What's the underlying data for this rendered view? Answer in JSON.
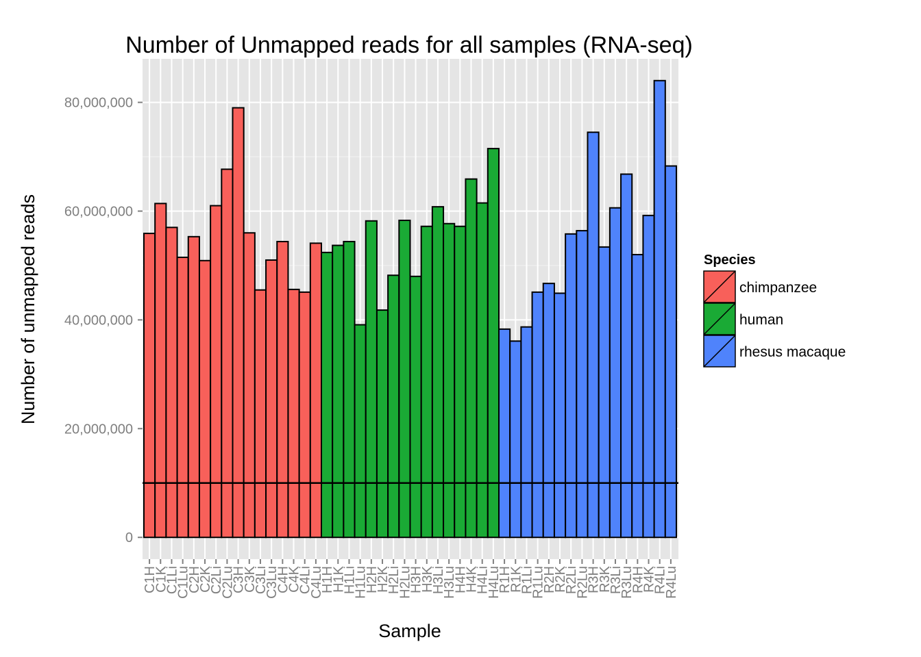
{
  "chart_data": {
    "type": "bar",
    "title": "Number of Unmapped reads for all samples (RNA-seq)",
    "xlabel": "Sample",
    "ylabel": "Number of unmapped reads",
    "ylim": [
      -4000000,
      88000000
    ],
    "yticks": [
      0,
      20000000,
      40000000,
      60000000,
      80000000
    ],
    "ytick_labels": [
      "0",
      "20,000,000",
      "40,000,000",
      "60,000,000",
      "80,000,000"
    ],
    "grid": true,
    "background": "#e5e5e5",
    "reference_line": 10000000,
    "legend": {
      "title": "Species",
      "position": "right",
      "entries": [
        {
          "name": "chimpanzee",
          "color": "#f8605a"
        },
        {
          "name": "human",
          "color": "#1aaa35"
        },
        {
          "name": "rhesus macaque",
          "color": "#4f83fc"
        }
      ]
    },
    "categories": [
      "C1H",
      "C1K",
      "C1Li",
      "C1Lu",
      "C2H",
      "C2K",
      "C2Li",
      "C2Lu",
      "C3H",
      "C3K",
      "C3Li",
      "C3Lu",
      "C4H",
      "C4K",
      "C4Li",
      "C4Lu",
      "H1H",
      "H1K",
      "H1Li",
      "H1Lu",
      "H2H",
      "H2K",
      "H2Li",
      "H2Lu",
      "H3H",
      "H3K",
      "H3Li",
      "H3Lu",
      "H4H",
      "H4K",
      "H4Li",
      "H4Lu",
      "R1H",
      "R1K",
      "R1Li",
      "R1Lu",
      "R2H",
      "R2K",
      "R2Li",
      "R2Lu",
      "R3H",
      "R3K",
      "R3Li",
      "R3Lu",
      "R4H",
      "R4K",
      "R4Li",
      "R4Lu"
    ],
    "values": [
      55900000,
      61400000,
      57000000,
      51500000,
      55300000,
      50900000,
      61000000,
      67700000,
      79000000,
      56000000,
      45500000,
      51000000,
      54400000,
      45600000,
      45100000,
      54100000,
      52400000,
      53700000,
      54400000,
      39100000,
      58200000,
      41800000,
      48200000,
      58300000,
      48000000,
      57200000,
      60800000,
      57700000,
      57200000,
      65900000,
      61500000,
      71500000,
      38300000,
      36100000,
      38700000,
      45100000,
      46700000,
      44900000,
      55800000,
      56400000,
      74500000,
      53400000,
      60600000,
      66800000,
      52000000,
      59200000,
      84000000,
      68300000
    ],
    "species": [
      "chimpanzee",
      "chimpanzee",
      "chimpanzee",
      "chimpanzee",
      "chimpanzee",
      "chimpanzee",
      "chimpanzee",
      "chimpanzee",
      "chimpanzee",
      "chimpanzee",
      "chimpanzee",
      "chimpanzee",
      "chimpanzee",
      "chimpanzee",
      "chimpanzee",
      "chimpanzee",
      "human",
      "human",
      "human",
      "human",
      "human",
      "human",
      "human",
      "human",
      "human",
      "human",
      "human",
      "human",
      "human",
      "human",
      "human",
      "human",
      "rhesus macaque",
      "rhesus macaque",
      "rhesus macaque",
      "rhesus macaque",
      "rhesus macaque",
      "rhesus macaque",
      "rhesus macaque",
      "rhesus macaque",
      "rhesus macaque",
      "rhesus macaque",
      "rhesus macaque",
      "rhesus macaque",
      "rhesus macaque",
      "rhesus macaque",
      "rhesus macaque",
      "rhesus macaque"
    ]
  }
}
